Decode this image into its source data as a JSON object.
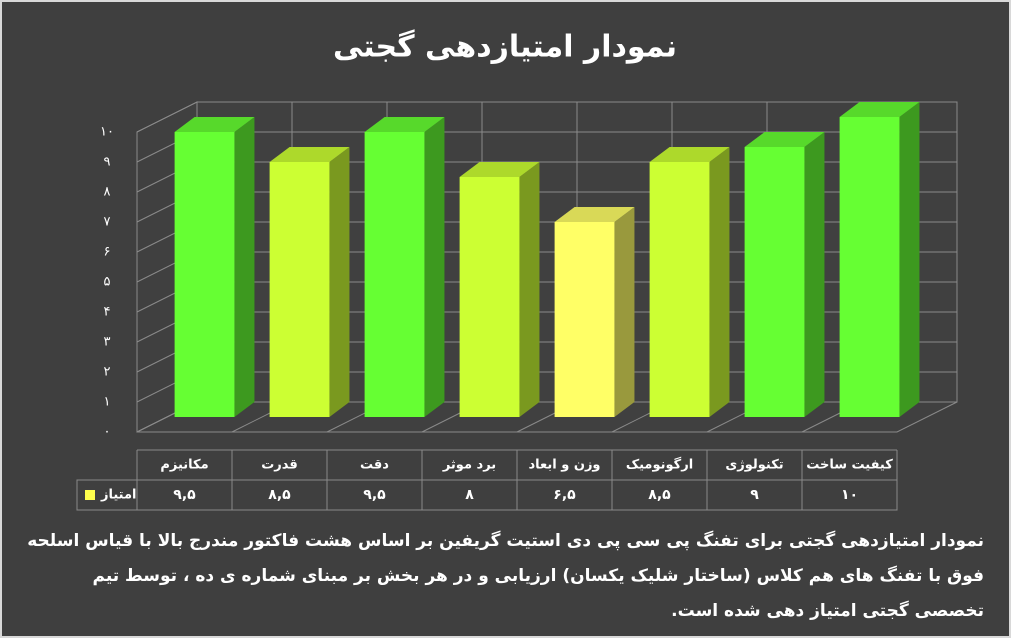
{
  "chart_data": {
    "type": "bar3d",
    "title": "نمودار امتیازدهی گجتی",
    "categories": [
      "مکانیزم",
      "قدرت",
      "دقت",
      "برد موثر",
      "وزن و ابعاد",
      "ارگونومیک",
      "تکنولوژی",
      "کیفیت ساخت"
    ],
    "series": [
      {
        "name": "امتیاز",
        "color": "#ffff4d",
        "colors": [
          "#66ff33",
          "#ccff33",
          "#66ff33",
          "#ccff33",
          "#ffff66",
          "#ccff33",
          "#66ff33",
          "#66ff33"
        ],
        "values": [
          9.5,
          8.5,
          9.5,
          8,
          6.5,
          8.5,
          9,
          10
        ],
        "value_labels": [
          "۹,۵",
          "۸,۵",
          "۹,۵",
          "۸",
          "۶,۵",
          "۸,۵",
          "۹",
          "۱۰"
        ]
      }
    ],
    "ylim": [
      0,
      10
    ],
    "yticks": [
      {
        "value": 0,
        "label": "۰"
      },
      {
        "value": 1,
        "label": "۱"
      },
      {
        "value": 2,
        "label": "۲"
      },
      {
        "value": 3,
        "label": "۳"
      },
      {
        "value": 4,
        "label": "۴"
      },
      {
        "value": 5,
        "label": "۵"
      },
      {
        "value": 6,
        "label": "۶"
      },
      {
        "value": 7,
        "label": "۷"
      },
      {
        "value": 8,
        "label": "۸"
      },
      {
        "value": 9,
        "label": "۹"
      },
      {
        "value": 10,
        "label": "۱۰"
      }
    ],
    "grid": true,
    "caption": "نمودار امتیازدهی گجتی برای تفنگ پی سی پی دی استیت گریفین بر اساس هشت فاکتور مندرج بالا با قیاس اسلحه فوق با تفنگ های هم کلاس (ساختار شلیک یکسان) ارزیابی و در هر بخش بر مبنای شماره ی ده ، توسط تیم تخصصی گجتی امتیاز دهی شده است."
  }
}
